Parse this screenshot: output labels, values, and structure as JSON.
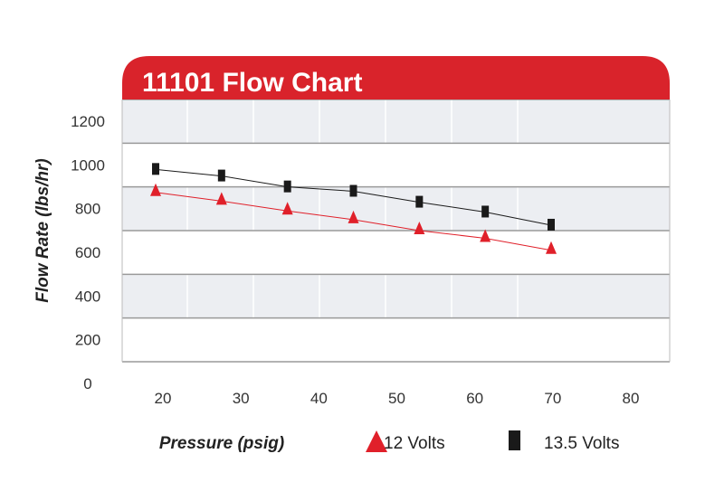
{
  "chart_data": {
    "type": "line",
    "title": "11101 Flow Chart",
    "xlabel": "Pressure (psig)",
    "ylabel": "Flow Rate (lbs/hr)",
    "x": [
      20,
      30,
      40,
      50,
      60,
      70,
      80
    ],
    "xticks": [
      "20",
      "30",
      "40",
      "50",
      "60",
      "70",
      "80"
    ],
    "yticks": [
      "0",
      "200",
      "400",
      "600",
      "800",
      "1000",
      "1200"
    ],
    "ylim": [
      0,
      1200
    ],
    "grid": true,
    "legend_placement": "bottom",
    "series": [
      {
        "name": "12 Volts",
        "marker": "triangle",
        "color": "#e0202a",
        "values": [
          775,
          735,
          690,
          650,
          600,
          565,
          510
        ]
      },
      {
        "name": "13.5 Volts",
        "marker": "square",
        "color": "#1a1a1a",
        "values": [
          880,
          850,
          800,
          780,
          730,
          685,
          625
        ]
      }
    ],
    "colors": {
      "header": "#d9232b",
      "band": "#eceef2",
      "grid": "#9a9a9a"
    }
  }
}
